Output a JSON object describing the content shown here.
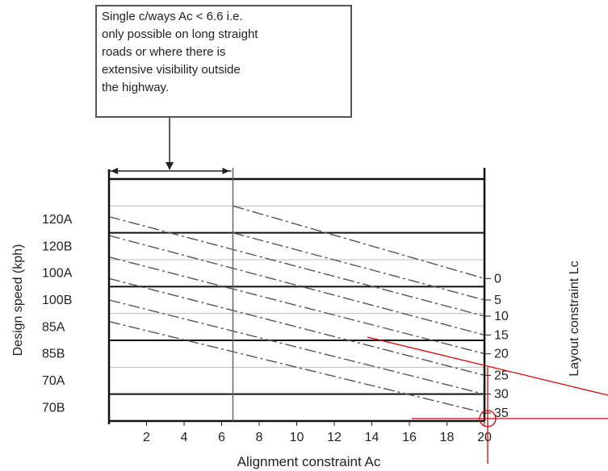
{
  "annotation": {
    "lines": [
      "Single c/ways Ac < 6.6 i.e.",
      "only possible on long straight",
      "roads or where there is",
      "extensive visibility outside",
      "the highway."
    ]
  },
  "colors": {
    "ink": "#222222",
    "grid_thin": "#bbbbbb",
    "grid_thick": "#111111",
    "dashed": "#555555",
    "overlay_red": "#dd0000"
  },
  "chart_data": {
    "type": "line",
    "title": "",
    "xlabel": "Alignment constraint Ac",
    "ylabel": "Design speed (kph)",
    "right_label": "Layout constraint Lc",
    "xlim": [
      0,
      20
    ],
    "x_ticks": [
      "2",
      "4",
      "6",
      "8",
      "10",
      "12",
      "14",
      "16",
      "18",
      "20"
    ],
    "speed_bands": [
      "120A",
      "120B",
      "100A",
      "100B",
      "85A",
      "85B",
      "70A",
      "70B"
    ],
    "grid": true,
    "single_carriageway_limit_ac": 6.6,
    "series": [
      {
        "name": "0",
        "points": [
          [
            6.6,
            8.0
          ],
          [
            20,
            5.3
          ]
        ]
      },
      {
        "name": "5",
        "points": [
          [
            6.6,
            7.0
          ],
          [
            20,
            4.5
          ]
        ]
      },
      {
        "name": "10",
        "points": [
          [
            0,
            7.6
          ],
          [
            20,
            3.9
          ]
        ]
      },
      {
        "name": "15",
        "points": [
          [
            0,
            6.9
          ],
          [
            20,
            3.2
          ]
        ]
      },
      {
        "name": "20",
        "points": [
          [
            0,
            6.1
          ],
          [
            20,
            2.5
          ]
        ]
      },
      {
        "name": "25",
        "points": [
          [
            0,
            5.3
          ],
          [
            20,
            1.7
          ]
        ]
      },
      {
        "name": "30",
        "points": [
          [
            0,
            4.5
          ],
          [
            20,
            1.0
          ]
        ]
      },
      {
        "name": "35",
        "points": [
          [
            0,
            3.7
          ],
          [
            20,
            0.3
          ]
        ]
      }
    ]
  }
}
